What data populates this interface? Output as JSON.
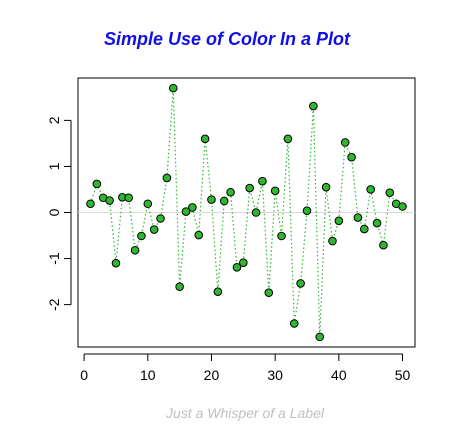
{
  "chart_data": {
    "type": "scatter",
    "title": "Simple Use of Color In a Plot",
    "subtitle": "Just a Whisper of a Label",
    "xlabel": "",
    "ylabel": "",
    "xlim": [
      -0.96,
      51.96
    ],
    "ylim": [
      -2.92,
      2.92
    ],
    "x_ticks": [
      0,
      10,
      20,
      30,
      40,
      50
    ],
    "y_ticks": [
      -2,
      -1,
      0,
      1,
      2
    ],
    "x_tick_labels": [
      "0",
      "10",
      "20",
      "30",
      "40",
      "50"
    ],
    "y_tick_labels": [
      "-2",
      "-1",
      "0",
      "1",
      "2"
    ],
    "reference_line": 0,
    "line_style": "dotted",
    "grid": false,
    "x": [
      1,
      2,
      3,
      4,
      5,
      6,
      7,
      8,
      9,
      10,
      11,
      12,
      13,
      14,
      15,
      16,
      17,
      18,
      19,
      20,
      21,
      22,
      23,
      24,
      25,
      26,
      27,
      28,
      29,
      30,
      31,
      32,
      33,
      34,
      35,
      36,
      37,
      38,
      39,
      40,
      41,
      42,
      43,
      44,
      45,
      46,
      47,
      48,
      49,
      50
    ],
    "y": [
      0.19,
      0.62,
      0.32,
      0.26,
      -1.1,
      0.33,
      0.32,
      -0.82,
      -0.51,
      0.19,
      -0.37,
      -0.13,
      0.75,
      2.7,
      -1.61,
      0.02,
      0.11,
      -0.49,
      1.6,
      0.28,
      -1.72,
      0.25,
      0.44,
      -1.19,
      -1.09,
      0.53,
      0.0,
      0.68,
      -1.74,
      0.47,
      -0.51,
      1.6,
      -2.41,
      -1.54,
      0.04,
      2.31,
      -2.7,
      0.55,
      -0.62,
      -0.18,
      1.52,
      1.2,
      -0.11,
      -0.36,
      0.5,
      -0.23,
      -0.71,
      0.43,
      0.19,
      0.13
    ]
  },
  "colors": {
    "title": "#1010e6",
    "subtitle": "#bfbfbf",
    "points_fill": "#2eb82e",
    "points_stroke": "#000000",
    "line": "#2eb82e",
    "reference_line": "#d9d9d9",
    "frame": "#000000"
  }
}
